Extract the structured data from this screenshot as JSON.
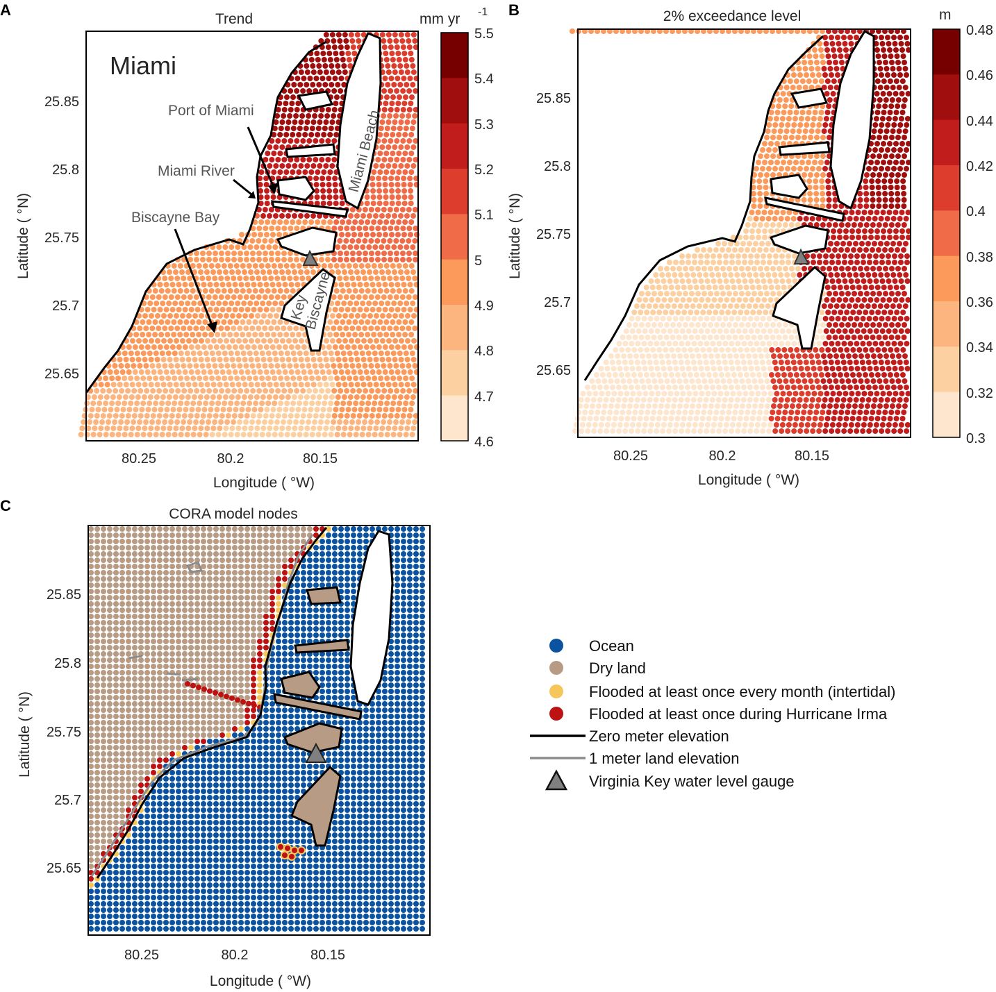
{
  "colors": {
    "trend_scale": [
      "#fff5eb",
      "#fee6ce",
      "#fdd0a2",
      "#fdb580",
      "#fc9a5c",
      "#f06b47",
      "#dc3d2d",
      "#c21d1d",
      "#a00e0e",
      "#760000"
    ],
    "ocean": "#0b52a0",
    "dry_land": "#b79b84",
    "intertidal": "#f5c75a",
    "irma": "#bc1212",
    "zero_elev": "#000000",
    "one_m_elev": "#8c8c8c",
    "gauge": "#808080"
  },
  "panel_a": {
    "letter": "A",
    "title": "Trend",
    "unit_main": "mm yr",
    "unit_exp": "-1",
    "city_label": "Miami",
    "annotations": {
      "port": "Port of Miami",
      "river": "Miami River",
      "bay": "Biscayne Bay",
      "beach": "Miami Beach",
      "key1": "Key",
      "key2": "Biscayne"
    },
    "xticks": [
      "80.25",
      "80.2",
      "80.15"
    ],
    "yticks": [
      "25.85",
      "25.8",
      "25.75",
      "25.7",
      "25.65"
    ],
    "xlabel": "Longitude (  °W)",
    "ylabel": "Latitude (  °N)",
    "cbar_ticks": [
      "5.5",
      "5.4",
      "5.3",
      "5.2",
      "5.1",
      "5",
      "4.9",
      "4.8",
      "4.7",
      "4.6"
    ]
  },
  "panel_b": {
    "letter": "B",
    "title": "2% exceedance level",
    "unit": "m",
    "xticks": [
      "80.25",
      "80.2",
      "80.15"
    ],
    "yticks": [
      "25.85",
      "25.8",
      "25.75",
      "25.7",
      "25.65"
    ],
    "xlabel": "Longitude (  °W)",
    "ylabel": "Latitude (  °N)",
    "cbar_ticks": [
      "0.48",
      "0.46",
      "0.44",
      "0.42",
      "0.4",
      "0.38",
      "0.36",
      "0.34",
      "0.32",
      "0.3"
    ]
  },
  "panel_c": {
    "letter": "C",
    "title": "CORA model nodes",
    "xticks": [
      "80.25",
      "80.2",
      "80.15"
    ],
    "yticks": [
      "25.85",
      "25.8",
      "25.75",
      "25.7",
      "25.65"
    ],
    "xlabel": "Longitude (  °W)",
    "ylabel": "Latitude (  °N)"
  },
  "legend": {
    "items": [
      {
        "label": "Ocean",
        "marker": "dot",
        "color": "#0b52a0"
      },
      {
        "label": "Dry land",
        "marker": "dot",
        "color": "#b79b84"
      },
      {
        "label": "Flooded at least once every month (intertidal)",
        "marker": "dot",
        "color": "#f5c75a"
      },
      {
        "label": "Flooded at least once during Hurricane Irma",
        "marker": "dot",
        "color": "#bc1212"
      },
      {
        "label": "Zero meter elevation",
        "marker": "line",
        "color": "#000000"
      },
      {
        "label": "1 meter land elevation",
        "marker": "line",
        "color": "#8c8c8c"
      },
      {
        "label": "Virginia Key water level gauge",
        "marker": "triangle",
        "color": "#808080"
      }
    ]
  }
}
